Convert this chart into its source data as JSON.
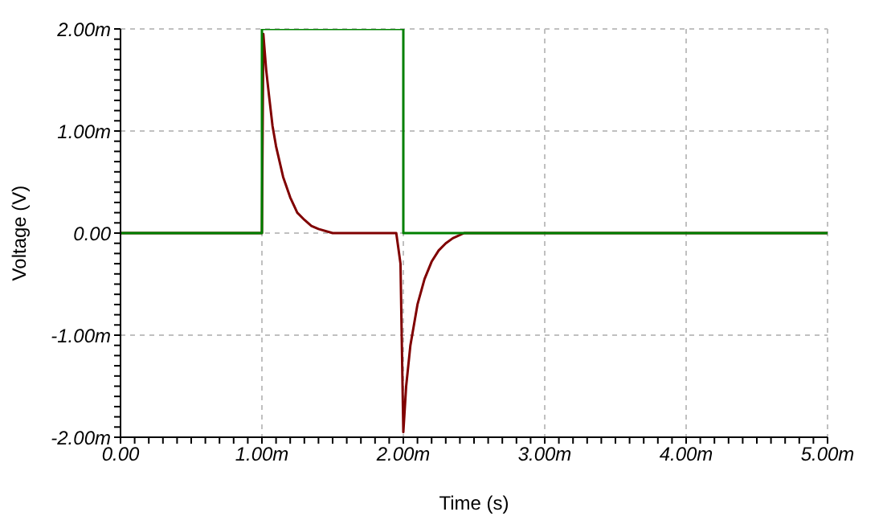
{
  "chart_data": {
    "type": "line",
    "xlabel": "Time (s)",
    "ylabel": "Voltage (V)",
    "grid": true,
    "marker": "none",
    "xlim": [
      0,
      5
    ],
    "ylim": [
      -2,
      2
    ],
    "xticks": [
      {
        "value": 0,
        "label": "0.00"
      },
      {
        "value": 0.1,
        "label": null
      },
      {
        "value": 0.2,
        "label": null
      },
      {
        "value": 0.3,
        "label": null
      },
      {
        "value": 0.4,
        "label": null
      },
      {
        "value": 0.5,
        "label": null
      },
      {
        "value": 0.6,
        "label": null
      },
      {
        "value": 0.7,
        "label": null
      },
      {
        "value": 0.8,
        "label": null
      },
      {
        "value": 0.9,
        "label": null
      },
      {
        "value": 1,
        "label": "1.00m"
      },
      {
        "value": 1.1,
        "label": null
      },
      {
        "value": 1.2,
        "label": null
      },
      {
        "value": 1.3,
        "label": null
      },
      {
        "value": 1.4,
        "label": null
      },
      {
        "value": 1.5,
        "label": null
      },
      {
        "value": 1.6,
        "label": null
      },
      {
        "value": 1.7,
        "label": null
      },
      {
        "value": 1.8,
        "label": null
      },
      {
        "value": 1.9,
        "label": null
      },
      {
        "value": 2,
        "label": "2.00m"
      },
      {
        "value": 2.1,
        "label": null
      },
      {
        "value": 2.2,
        "label": null
      },
      {
        "value": 2.3,
        "label": null
      },
      {
        "value": 2.4,
        "label": null
      },
      {
        "value": 2.5,
        "label": null
      },
      {
        "value": 2.6,
        "label": null
      },
      {
        "value": 2.7,
        "label": null
      },
      {
        "value": 2.8,
        "label": null
      },
      {
        "value": 2.9,
        "label": null
      },
      {
        "value": 3,
        "label": "3.00m"
      },
      {
        "value": 3.1,
        "label": null
      },
      {
        "value": 3.2,
        "label": null
      },
      {
        "value": 3.3,
        "label": null
      },
      {
        "value": 3.4,
        "label": null
      },
      {
        "value": 3.5,
        "label": null
      },
      {
        "value": 3.6,
        "label": null
      },
      {
        "value": 3.7,
        "label": null
      },
      {
        "value": 3.8,
        "label": null
      },
      {
        "value": 3.9,
        "label": null
      },
      {
        "value": 4,
        "label": "4.00m"
      },
      {
        "value": 4.1,
        "label": null
      },
      {
        "value": 4.2,
        "label": null
      },
      {
        "value": 4.3,
        "label": null
      },
      {
        "value": 4.4,
        "label": null
      },
      {
        "value": 4.5,
        "label": null
      },
      {
        "value": 4.6,
        "label": null
      },
      {
        "value": 4.7,
        "label": null
      },
      {
        "value": 4.8,
        "label": null
      },
      {
        "value": 4.9,
        "label": null
      },
      {
        "value": 5,
        "label": "5.00m"
      }
    ],
    "yticks": [
      {
        "value": -2,
        "label": "-2.00m"
      },
      {
        "value": -1.9,
        "label": null
      },
      {
        "value": -1.8,
        "label": null
      },
      {
        "value": -1.7,
        "label": null
      },
      {
        "value": -1.6,
        "label": null
      },
      {
        "value": -1.5,
        "label": null
      },
      {
        "value": -1.4,
        "label": null
      },
      {
        "value": -1.3,
        "label": null
      },
      {
        "value": -1.2,
        "label": null
      },
      {
        "value": -1.1,
        "label": null
      },
      {
        "value": -1,
        "label": "-1.00m"
      },
      {
        "value": -0.9,
        "label": null
      },
      {
        "value": -0.8,
        "label": null
      },
      {
        "value": -0.7,
        "label": null
      },
      {
        "value": -0.6,
        "label": null
      },
      {
        "value": -0.5,
        "label": null
      },
      {
        "value": -0.4,
        "label": null
      },
      {
        "value": -0.3,
        "label": null
      },
      {
        "value": -0.2,
        "label": null
      },
      {
        "value": -0.1,
        "label": null
      },
      {
        "value": 0,
        "label": "0.00"
      },
      {
        "value": 0.1,
        "label": null
      },
      {
        "value": 0.2,
        "label": null
      },
      {
        "value": 0.3,
        "label": null
      },
      {
        "value": 0.4,
        "label": null
      },
      {
        "value": 0.5,
        "label": null
      },
      {
        "value": 0.6,
        "label": null
      },
      {
        "value": 0.7,
        "label": null
      },
      {
        "value": 0.8,
        "label": null
      },
      {
        "value": 0.9,
        "label": null
      },
      {
        "value": 1,
        "label": "1.00m"
      },
      {
        "value": 1.1,
        "label": null
      },
      {
        "value": 1.2,
        "label": null
      },
      {
        "value": 1.3,
        "label": null
      },
      {
        "value": 1.4,
        "label": null
      },
      {
        "value": 1.5,
        "label": null
      },
      {
        "value": 1.6,
        "label": null
      },
      {
        "value": 1.7,
        "label": null
      },
      {
        "value": 1.8,
        "label": null
      },
      {
        "value": 1.9,
        "label": null
      },
      {
        "value": 2,
        "label": "2.00m"
      }
    ],
    "series": [
      {
        "color": "#800000",
        "x": [
          0,
          1,
          1.01,
          1.03,
          1.05,
          1.075,
          1.1,
          1.15,
          1.2,
          1.25,
          1.3,
          1.35,
          1.4,
          1.5,
          1.95,
          1.98,
          2,
          2.02,
          2.05,
          2.1,
          2.15,
          2.2,
          2.25,
          2.3,
          2.35,
          2.43,
          5
        ],
        "values": [
          0,
          0,
          1.95,
          1.6,
          1.35,
          1.05,
          0.85,
          0.55,
          0.35,
          0.2,
          0.13,
          0.07,
          0.04,
          0,
          0,
          -0.3,
          -1.95,
          -1.5,
          -1.1,
          -0.7,
          -0.45,
          -0.28,
          -0.17,
          -0.1,
          -0.05,
          0,
          0
        ]
      },
      {
        "color": "#008000",
        "x": [
          0,
          1,
          1,
          2,
          2,
          5
        ],
        "values": [
          0,
          0,
          2,
          2,
          0,
          0
        ]
      }
    ]
  }
}
